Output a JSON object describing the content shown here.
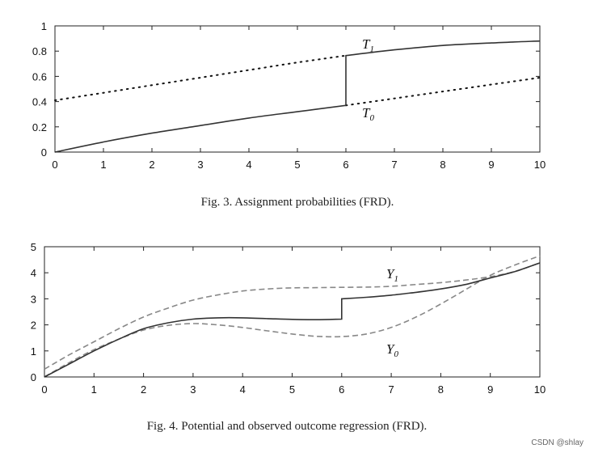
{
  "chart_data": [
    {
      "type": "line",
      "caption": "Fig. 3.  Assignment probabilities (FRD).",
      "xlim": [
        0,
        10
      ],
      "ylim": [
        0,
        1
      ],
      "xticks": [
        "0",
        "1",
        "2",
        "3",
        "4",
        "5",
        "6",
        "7",
        "8",
        "9",
        "10"
      ],
      "yticks": [
        "0",
        "0.2",
        "0.4",
        "0.6",
        "0.8",
        "1"
      ],
      "xtick_values": [
        0,
        1,
        2,
        3,
        4,
        5,
        6,
        7,
        8,
        9,
        10
      ],
      "ytick_values": [
        0,
        0.2,
        0.4,
        0.6,
        0.8,
        1
      ],
      "series": [
        {
          "name": "T",
          "sub": "1",
          "style": "dotted",
          "x": [
            0,
            1,
            2,
            3,
            4,
            5,
            6
          ],
          "y": [
            0.41,
            0.47,
            0.53,
            0.59,
            0.65,
            0.71,
            0.765
          ]
        },
        {
          "name": "T",
          "sub": "0",
          "style": "dotted",
          "x": [
            6,
            7,
            8,
            9,
            10
          ],
          "y": [
            0.37,
            0.425,
            0.48,
            0.535,
            0.59
          ]
        },
        {
          "name": "",
          "style": "solid",
          "x": [
            0,
            1,
            2,
            3,
            4,
            5,
            6,
            6,
            7,
            8,
            9,
            10
          ],
          "y": [
            0.0,
            0.08,
            0.15,
            0.21,
            0.27,
            0.32,
            0.37,
            0.765,
            0.81,
            0.845,
            0.865,
            0.88
          ]
        }
      ]
    },
    {
      "type": "line",
      "caption": "Fig. 4.  Potential and observed outcome regression (FRD).",
      "xlim": [
        0,
        10
      ],
      "ylim": [
        0,
        5
      ],
      "xticks": [
        "0",
        "1",
        "2",
        "3",
        "4",
        "5",
        "6",
        "7",
        "8",
        "9",
        "10"
      ],
      "yticks": [
        "0",
        "1",
        "2",
        "3",
        "4",
        "5"
      ],
      "xtick_values": [
        0,
        1,
        2,
        3,
        4,
        5,
        6,
        7,
        8,
        9,
        10
      ],
      "ytick_values": [
        0,
        1,
        2,
        3,
        4,
        5
      ],
      "series": [
        {
          "name": "Y",
          "sub": "1",
          "style": "dashed",
          "x": [
            0,
            0.5,
            1,
            1.5,
            2,
            2.5,
            3,
            3.5,
            4,
            4.5,
            5,
            5.5,
            6,
            6.5,
            7,
            7.5,
            8,
            8.5,
            9,
            9.5,
            10
          ],
          "y": [
            0.3,
            0.85,
            1.35,
            1.85,
            2.3,
            2.65,
            2.95,
            3.15,
            3.3,
            3.38,
            3.42,
            3.43,
            3.44,
            3.45,
            3.48,
            3.55,
            3.62,
            3.72,
            3.85,
            4.05,
            4.38
          ]
        },
        {
          "name": "Y",
          "sub": "0",
          "style": "dashed",
          "x": [
            0,
            0.5,
            1,
            1.5,
            2,
            2.5,
            3,
            3.5,
            4,
            4.5,
            5,
            5.5,
            6,
            6.5,
            7,
            7.5,
            8,
            8.5,
            9,
            9.5,
            10
          ],
          "y": [
            0.0,
            0.55,
            1.05,
            1.45,
            1.8,
            1.98,
            2.05,
            2.0,
            1.9,
            1.77,
            1.65,
            1.56,
            1.55,
            1.65,
            1.9,
            2.3,
            2.8,
            3.35,
            3.9,
            4.3,
            4.65
          ]
        },
        {
          "name": "",
          "style": "solid",
          "x": [
            0,
            0.5,
            1,
            1.5,
            2,
            2.5,
            3,
            3.5,
            4,
            4.5,
            5,
            5.5,
            6,
            6,
            6.5,
            7,
            7.5,
            8,
            8.5,
            9,
            9.5,
            10
          ],
          "y": [
            0.0,
            0.5,
            1.0,
            1.45,
            1.85,
            2.08,
            2.22,
            2.27,
            2.27,
            2.24,
            2.21,
            2.2,
            2.22,
            3.0,
            3.06,
            3.14,
            3.25,
            3.38,
            3.55,
            3.8,
            4.05,
            4.38
          ]
        }
      ]
    }
  ],
  "watermark": "CSDN @shlay"
}
